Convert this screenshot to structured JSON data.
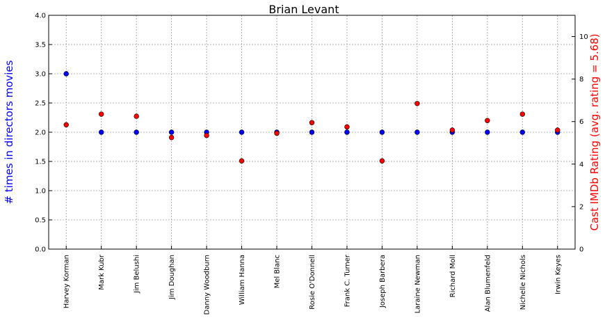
{
  "chart_data": {
    "type": "scatter",
    "title": "Brian Levant",
    "left_ylabel": "# times in directors movies",
    "right_ylabel": "Cast IMDb Rating (avg. rating = 5.68)",
    "left_ylim": [
      0,
      4
    ],
    "left_yticks": [
      "0.0",
      "0.5",
      "1.0",
      "1.5",
      "2.0",
      "2.5",
      "3.0",
      "3.5",
      "4.0"
    ],
    "right_ylim": [
      0,
      11
    ],
    "right_yticks": [
      "0",
      "2",
      "4",
      "6",
      "8",
      "10"
    ],
    "grid": true,
    "categories": [
      "Harvey Korman",
      "Mark Kubr",
      "Jim Belushi",
      "Jim Doughan",
      "Danny Woodburn",
      "William Hanna",
      "Mel Blanc",
      "Rosie O'Donnell",
      "Frank C. Turner",
      "Joseph Barbera",
      "Laraine Newman",
      "Richard Moll",
      "Alan Blumenfeld",
      "Nichelle Nichols",
      "Irwin Keyes"
    ],
    "series": [
      {
        "axis": "left",
        "color": "#0000ff",
        "values": [
          3,
          2,
          2,
          2,
          2,
          2,
          2,
          2,
          2,
          2,
          2,
          2,
          2,
          2,
          2
        ]
      },
      {
        "axis": "right",
        "color": "#ff0000",
        "values": [
          5.85,
          6.35,
          6.25,
          5.25,
          5.35,
          4.15,
          5.45,
          5.95,
          5.75,
          4.15,
          6.85,
          5.6,
          6.05,
          6.35,
          5.6
        ]
      }
    ]
  }
}
